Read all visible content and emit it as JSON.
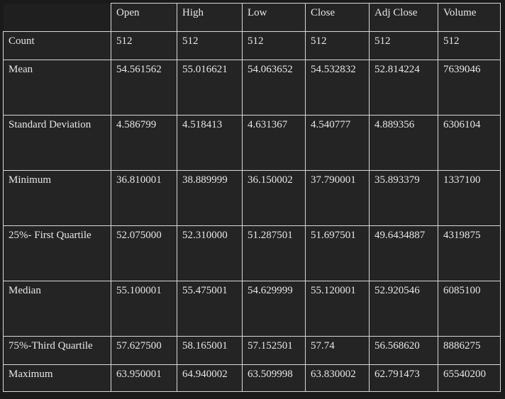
{
  "table": {
    "columns": [
      "",
      "Open",
      "High",
      "Low",
      "Close",
      "Adj Close",
      "Volume"
    ],
    "rows": [
      {
        "label": "Count",
        "values": [
          "512",
          "512",
          "512",
          "512",
          "512",
          "512"
        ]
      },
      {
        "label": "Mean",
        "values": [
          "54.561562",
          "55.016621",
          "54.063652",
          "54.532832",
          "52.814224",
          "7639046"
        ]
      },
      {
        "label": "Standard Deviation",
        "values": [
          "4.586799",
          "4.518413",
          "4.631367",
          "4.540777",
          "4.889356",
          "6306104"
        ]
      },
      {
        "label": "Minimum",
        "values": [
          "36.810001",
          "38.889999",
          "36.150002",
          "37.790001",
          "35.893379",
          "1337100"
        ]
      },
      {
        "label": "25%- First Quartile",
        "values": [
          "52.075000",
          "52.310000",
          "51.287501",
          "51.697501",
          "49.6434887",
          "4319875"
        ]
      },
      {
        "label": "Median",
        "values": [
          "55.100001",
          "55.475001",
          "54.629999",
          "55.120001",
          "52.920546",
          "6085100"
        ]
      },
      {
        "label": "75%-Third Quartile",
        "values": [
          "57.627500",
          "58.165001",
          "57.152501",
          "57.74",
          "56.568620",
          "8886275"
        ]
      },
      {
        "label": "Maximum",
        "values": [
          "63.950001",
          "64.940002",
          "63.509998",
          "63.830002",
          "62.791473",
          "65540200"
        ]
      }
    ]
  }
}
